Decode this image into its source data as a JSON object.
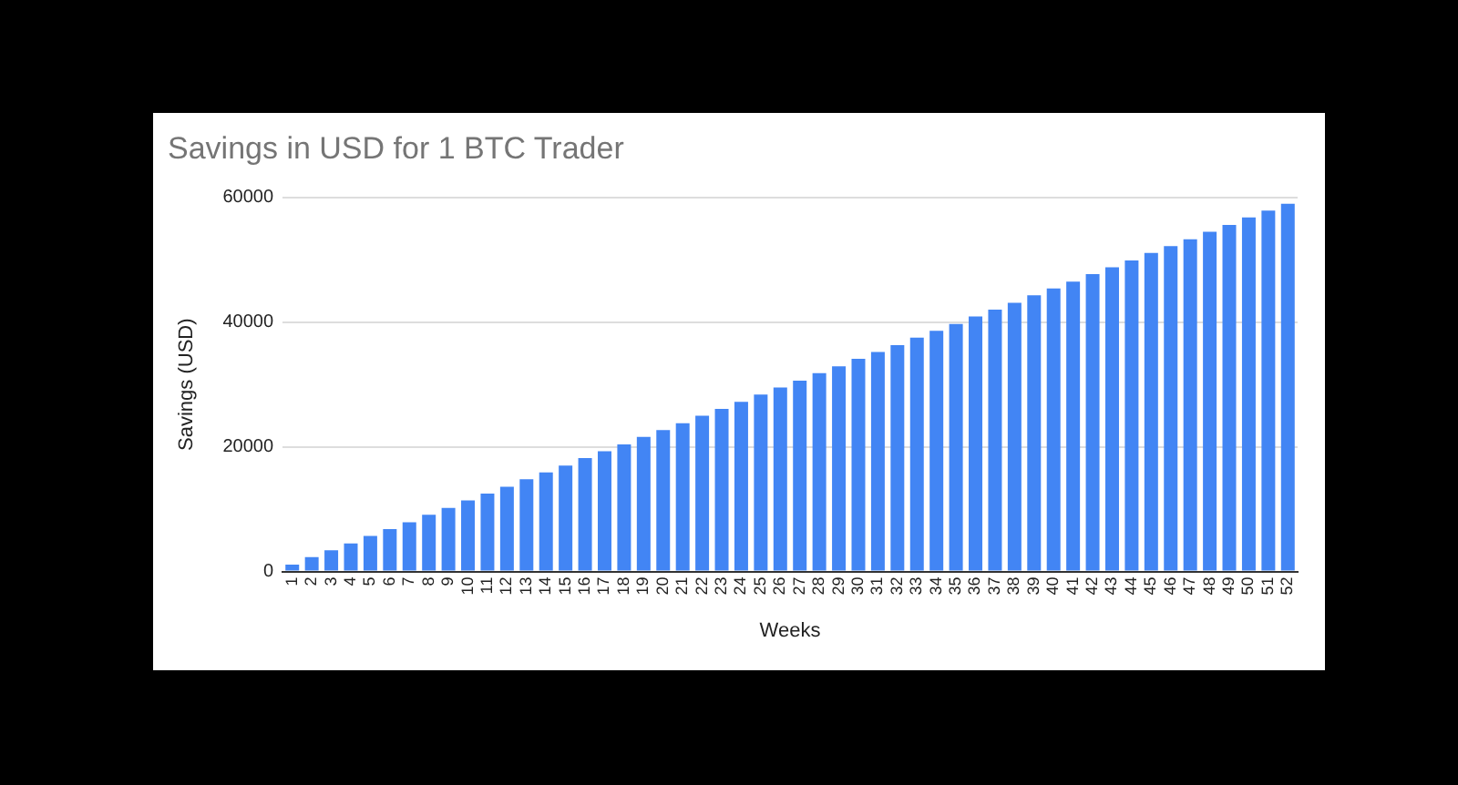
{
  "chart_data": {
    "type": "bar",
    "title": "Savings in USD for 1 BTC Trader",
    "xlabel": "Weeks",
    "ylabel": "Savings (USD)",
    "categories": [
      "1",
      "2",
      "3",
      "4",
      "5",
      "6",
      "7",
      "8",
      "9",
      "10",
      "11",
      "12",
      "13",
      "14",
      "15",
      "16",
      "17",
      "18",
      "19",
      "20",
      "21",
      "22",
      "23",
      "24",
      "25",
      "26",
      "27",
      "28",
      "29",
      "30",
      "31",
      "32",
      "33",
      "34",
      "35",
      "36",
      "37",
      "38",
      "39",
      "40",
      "41",
      "42",
      "43",
      "44",
      "45",
      "46",
      "47",
      "48",
      "49",
      "50",
      "51",
      "52"
    ],
    "values": [
      1100,
      2300,
      3400,
      4500,
      5700,
      6800,
      7900,
      9100,
      10200,
      11400,
      12500,
      13600,
      14800,
      15900,
      17000,
      18200,
      19300,
      20400,
      21600,
      22700,
      23800,
      25000,
      26100,
      27200,
      28400,
      29500,
      30600,
      31800,
      32900,
      34100,
      35200,
      36300,
      37500,
      38600,
      39700,
      40900,
      42000,
      43100,
      44300,
      45400,
      46500,
      47700,
      48800,
      49900,
      51100,
      52200,
      53300,
      54500,
      55600,
      56800,
      57900,
      59000
    ],
    "color": "#4285f4",
    "ylim": [
      0,
      60000
    ],
    "yticks": [
      0,
      20000,
      40000,
      60000
    ],
    "grid": "y"
  }
}
